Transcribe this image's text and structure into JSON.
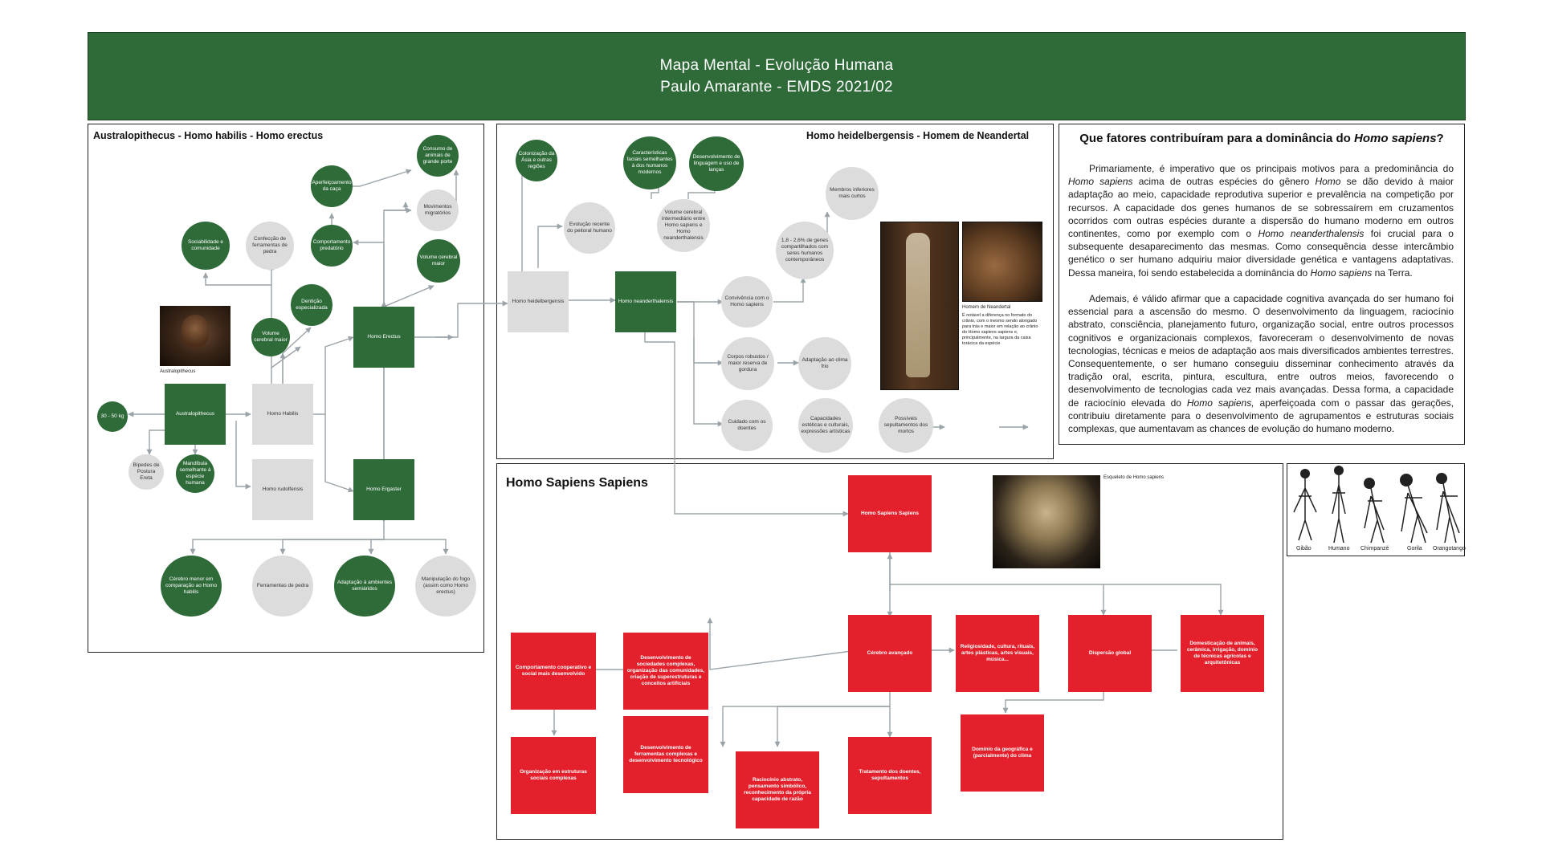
{
  "header": {
    "line1": "Mapa Mental - Evolução Humana",
    "line2": "Paulo Amarante - EMDS 2021/02"
  },
  "panels": {
    "left_title": "Australopithecus - Homo habilis - Homo erectus",
    "middle_title": "Homo heidelbergensis - Homem de Neandertal",
    "sapiens_title": "Homo Sapiens Sapiens"
  },
  "colors": {
    "green": "#2e6b39",
    "gray": "#dcdcdc",
    "red": "#e3202b"
  },
  "left": {
    "weight": "30 - 50 kg",
    "australopithecus": "Australopithecus",
    "bipedes": "Bípedes de Postura Ereta",
    "mandibula": "Mandíbula semelhante à espécie humana",
    "habilis": "Homo Habilis",
    "rudolfensis": "Homo rudolfensis",
    "erectus": "Homo Erectus",
    "ergaster": "Homo Ergaster",
    "sociabilidade": "Sociabilidade e comunidade",
    "confeccao": "Confecção de ferramentas de pedra",
    "volume_maior": "Volume cerebral maior",
    "denticao": "Dentição especializada",
    "comportamento": "Comportamento predatório",
    "aperfeicoamento": "Aperfeiçoamento da caça",
    "consumo": "Consumo de animais de grande porte",
    "movimentos": "Movimentos migratórios",
    "volume_erectus": "Volume cerebral maior",
    "cerebro_menor": "Cérebro menor em comparação ao Homo habilis",
    "ferramentas": "Ferramentas de pedra",
    "adaptacao_semi": "Adaptação à ambientes semiáridos",
    "fogo": "Manipulação do fogo (assim como Homo erectus)",
    "photo_caption": "Australopithecus"
  },
  "middle": {
    "colonizacao": "Colonização da Ásia e outras regiões",
    "evolucao": "Evolução recente do peitoral humano",
    "caracteristicas": "Características faciais semelhantes à dos humanos modernos",
    "linguagem": "Desenvolvimento de linguagem e uso de lanças",
    "volume_intermediario": "Volume cerebral intermediário entre Homo sapiens e Homo neanderthalensis",
    "genes": "1,8 - 2,6% de genes compartilhados com seres humanos contemporâneos",
    "membros": "Membros inferiores mais curtos",
    "heidelbergensis": "Homo heidelbergensis",
    "neanderthalensis": "Homo neanderthalensis",
    "convivencia": "Convivência com o Homo sapiens",
    "corpos": "Corpos robustos / maior reserva de gordura",
    "adaptacao_frio": "Adaptação ao clima frio",
    "cuidado": "Cuidado com os doentes",
    "capacidades": "Capacidades estéticas e culturais, expressões artísticas",
    "sepultamentos": "Possíveis sepultamentos dos mortos",
    "photo_caption_title": "Homem de Neandertal",
    "photo_caption_text": "É notável a diferença no formato do crânio, com o mesmo sendo alongado para trás e maior em relação ao crânio do Homo sapiens sapiens e, principalmente, na largura da caixa torácica da espécie"
  },
  "sapiens": {
    "main": "Homo Sapiens Sapiens",
    "photo_caption": "Esqueleto de Homo sapiens",
    "cerebro": "Cérebro avançado",
    "religiosidade": "Religiosidade, cultura, rituais, artes plásticas, artes visuais, música...",
    "dispersao": "Dispersão global",
    "domesticacao": "Domesticação de animais, cerâmica, irrigação, domínio de técnicas agrícolas e arquitetônicas",
    "sociedades": "Desenvolvimento de sociedades complexas, organização das comunidades, criação de superestruturas e conceitos artificiais",
    "comportamento": "Comportamento cooperativo e social mais desenvolvido",
    "organizacao": "Organização em estruturas sociais complexas",
    "ferramentas": "Desenvolvimento de ferramentas complexas e desenvolvimento tecnológico",
    "raciocinio": "Raciocínio abstrato, pensamento simbólico, reconhecimento da própria capacidade de razão",
    "tratamento": "Tratamento dos doentes, sepultamentos",
    "dominio": "Domínio da geográfica e (parcialmente) do clima"
  },
  "question": {
    "title_pre": "Que fatores contribuíram para a dominância do ",
    "title_em": "Homo sapiens",
    "title_post": "?",
    "p1": [
      {
        "t": "Primariamente, é imperativo que os principais motivos para a predominância do "
      },
      {
        "t": "Homo sapiens",
        "i": true
      },
      {
        "t": " acima de outras espécies do gênero "
      },
      {
        "t": "Homo",
        "i": true
      },
      {
        "t": "  se dão devido à maior adaptação ao meio, capacidade reprodutiva superior e prevalência na competição por recursos. A capacidade dos genes humanos de se sobressaírem em cruzamentos ocorridos com outras espécies durante a dispersão do humano moderno em outros continentes, como por exemplo com o "
      },
      {
        "t": "Homo neanderthalensis",
        "i": true
      },
      {
        "t": " foi crucial para o subsequente desaparecimento das mesmas. Como consequência desse intercâmbio genético o ser humano adquiriu maior diversidade genética e vantagens adaptativas. Dessa maneira, foi sendo estabelecida a dominância do "
      },
      {
        "t": "Homo sapiens",
        "i": true
      },
      {
        "t": " na Terra."
      }
    ],
    "p2": [
      {
        "t": "Ademais, é válido afirmar que a capacidade cognitiva avançada do ser humano foi essencial para a ascensão do mesmo. O desenvolvimento da linguagem, raciocínio abstrato, consciência, planejamento futuro, organização social, entre outros processos cognitivos e organizacionais complexos, favoreceram o desenvolvimento de novas tecnologias, técnicas e meios de adaptação aos mais diversificados ambientes terrestres. Consequentemente, o ser humano conseguiu disseminar conhecimento através da tradição oral, escrita, pintura, escultura, entre outros meios, favorecendo o desenvolvimento de tecnologias cada vez mais avançadas. Dessa forma, a capacidade de raciocínio elevada do "
      },
      {
        "t": "Homo sapiens,",
        "i": true
      },
      {
        "t": " aperfeiçoada com o passar das gerações, contribuiu diretamente para o desenvolvimento de agrupamentos e estruturas sociais complexas, que aumentavam as chances de evolução do humano moderno."
      }
    ]
  },
  "primates": {
    "labels": [
      "Gibão",
      "Humano",
      "Chimpanzé",
      "Gorila",
      "Orangotango"
    ]
  }
}
